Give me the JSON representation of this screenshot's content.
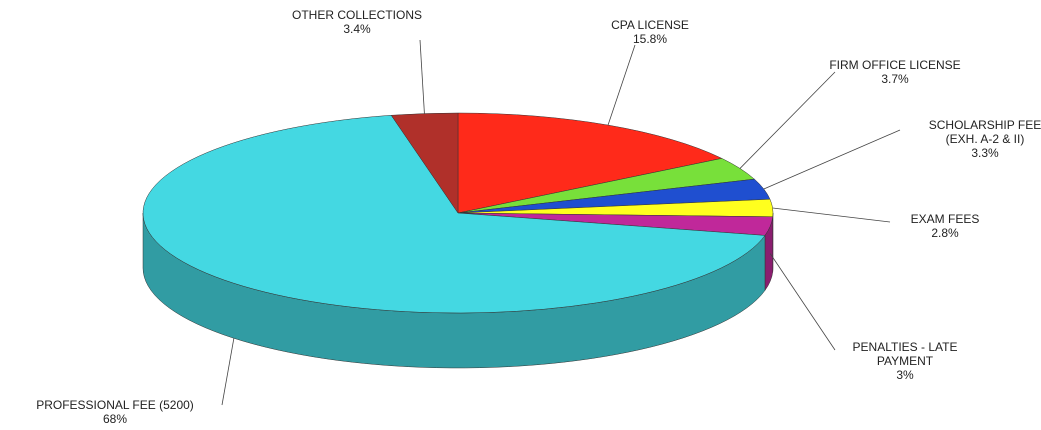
{
  "chart_data": {
    "type": "pie",
    "categories": [
      "CPA LICENSE",
      "FIRM OFFICE LICENSE",
      "SCHOLARSHIP FEE (EXH. A-2 & II)",
      "EXAM FEES",
      "PENALTIES - LATE PAYMENT",
      "PROFESSIONAL FEE (5200)",
      "OTHER COLLECTIONS"
    ],
    "values": [
      15.8,
      3.7,
      3.3,
      2.8,
      3,
      68,
      3.4
    ],
    "value_labels": [
      "15.8%",
      "3.7%",
      "3.3%",
      "2.8%",
      "3%",
      "68%",
      "3.4%"
    ],
    "colors": [
      "#ff2a1a",
      "#78e03a",
      "#1f4fd0",
      "#ffff1e",
      "#c0289a",
      "#44d8e2",
      "#b0302a"
    ]
  }
}
